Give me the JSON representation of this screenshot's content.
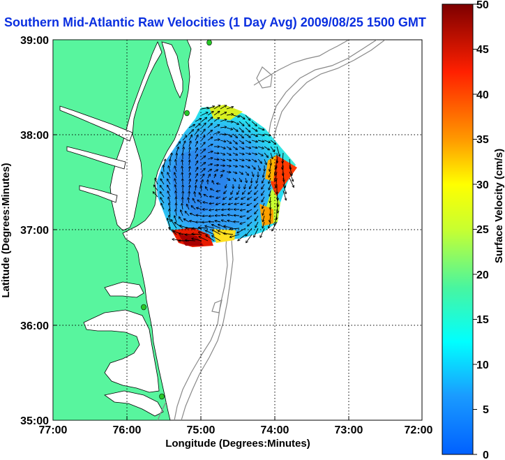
{
  "title": "Southern Mid-Atlantic Raw Velocities (1 Day Avg) 2009/08/25 1500 GMT",
  "map": {
    "x_axis": {
      "label": "Longitude (Degrees:Minutes)",
      "ticks": [
        "77:00",
        "76:00",
        "75:00",
        "74:00",
        "73:00",
        "72:00"
      ]
    },
    "y_axis": {
      "label": "Latitude (Degrees:Minutes)",
      "ticks": [
        "39:00",
        "38:00",
        "37:00",
        "36:00",
        "35:00"
      ]
    },
    "extent": {
      "lon_min": -77,
      "lon_max": -72,
      "lat_min": 35,
      "lat_max": 39
    },
    "grid": "dotted",
    "colors": {
      "land": "#58f59e",
      "water": "#ffffff",
      "coast": "#000000",
      "bathymetry": "#888888",
      "stations": "#28c828"
    }
  },
  "colorbar": {
    "label": "Surface Velocity (cm/s)",
    "min": 0,
    "max": 50,
    "ticks": [
      "50",
      "45",
      "40",
      "35",
      "30",
      "25",
      "20",
      "15",
      "10",
      "5",
      "0"
    ],
    "colormap": "jet"
  }
}
